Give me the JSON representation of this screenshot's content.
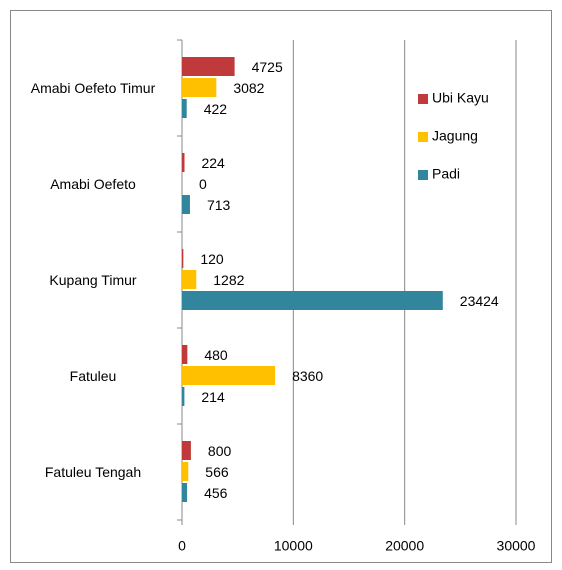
{
  "chart_data": {
    "type": "bar",
    "orientation": "horizontal",
    "categories": [
      "Amabi Oefeto Timur",
      "Amabi Oefeto",
      "Kupang Timur",
      "Fatuleu",
      "Fatuleu Tengah"
    ],
    "series": [
      {
        "name": "Ubi Kayu",
        "color": "#c0393b",
        "values": [
          4725,
          224,
          120,
          480,
          800
        ]
      },
      {
        "name": "Jagung",
        "color": "#ffc000",
        "values": [
          3082,
          0,
          1282,
          8360,
          566
        ]
      },
      {
        "name": "Padi",
        "color": "#31859c",
        "values": [
          422,
          713,
          23424,
          214,
          456
        ]
      }
    ],
    "xlim": [
      0,
      30000
    ],
    "xticks": [
      0,
      10000,
      20000,
      30000
    ],
    "grid": true,
    "legend": "right"
  }
}
